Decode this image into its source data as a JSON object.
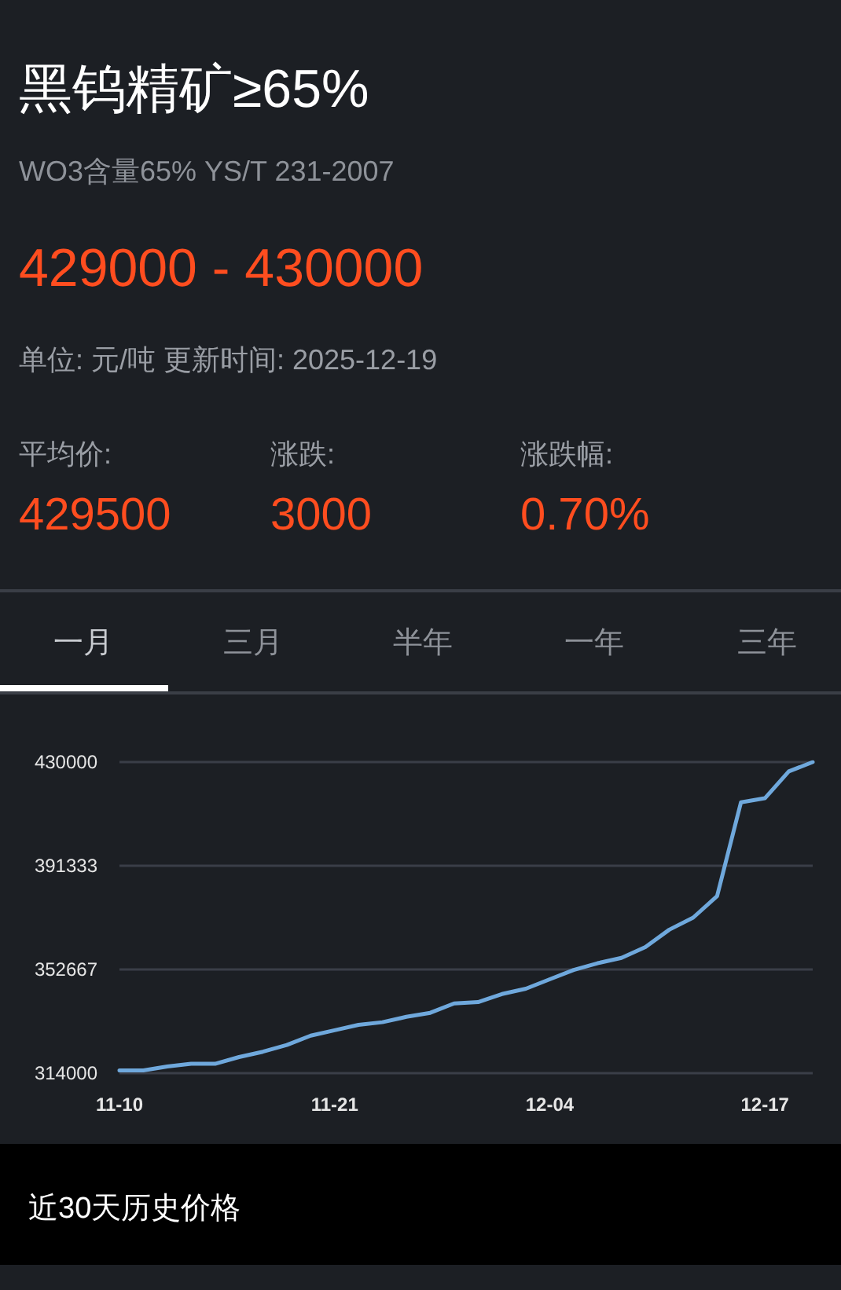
{
  "chart_data": {
    "type": "line",
    "title": "黑钨精矿≥65%",
    "subtitle": "WO3含量65% YS/T 231-2007",
    "annotations": [
      "429000 - 430000",
      "单位: 元/吨 更新时间: 2025-12-19",
      "平均价:",
      "429500",
      "涨跌:",
      "3000",
      "涨跌幅:",
      "0.70%",
      "一月",
      "三月",
      "半年",
      "一年",
      "三年",
      "近30天历史价格"
    ],
    "categories": [
      "11-10",
      null,
      null,
      null,
      null,
      null,
      null,
      null,
      null,
      "11-21",
      null,
      null,
      null,
      null,
      null,
      null,
      null,
      null,
      "12-04",
      null,
      null,
      null,
      null,
      null,
      null,
      null,
      null,
      "12-17",
      null,
      null
    ],
    "series": [
      {
        "color": "#6fa8dc",
        "values": [
          315000,
          315000,
          316500,
          317500,
          317500,
          320000,
          322000,
          324500,
          328000,
          330000,
          332000,
          333000,
          335000,
          336500,
          340000,
          340500,
          343500,
          345500,
          349000,
          352500,
          355000,
          357000,
          361000,
          367500,
          372000,
          380000,
          415000,
          416500,
          426500,
          430000
        ]
      }
    ],
    "ylim": [
      314000,
      430000
    ],
    "yticks": [
      314000,
      352667,
      391333,
      430000
    ],
    "grid": "y",
    "marker": "none",
    "line_style": "solid"
  }
}
